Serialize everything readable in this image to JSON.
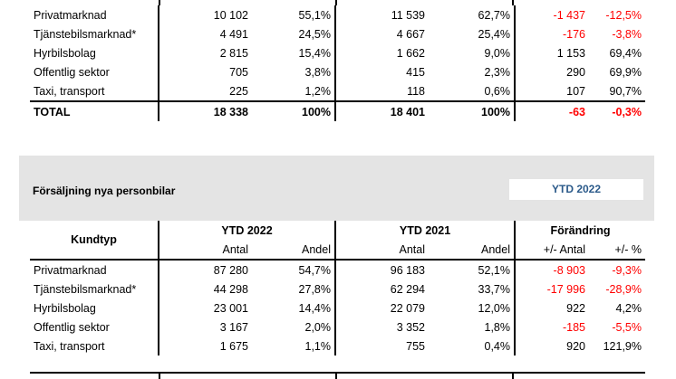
{
  "table1": {
    "rows": [
      {
        "label": "Privatmarknad",
        "a22": "10 102",
        "s22": "55,1%",
        "a21": "11 539",
        "s21": "62,7%",
        "da": "-1 437",
        "dp": "-12,5%",
        "neg_a": true,
        "neg_p": true
      },
      {
        "label": "Tjänstebilsmarknad*",
        "a22": "4 491",
        "s22": "24,5%",
        "a21": "4 667",
        "s21": "25,4%",
        "da": "-176",
        "dp": "-3,8%",
        "neg_a": true,
        "neg_p": true
      },
      {
        "label": "Hyrbilsbolag",
        "a22": "2 815",
        "s22": "15,4%",
        "a21": "1 662",
        "s21": "9,0%",
        "da": "1 153",
        "dp": "69,4%",
        "neg_a": false,
        "neg_p": false
      },
      {
        "label": "Offentlig sektor",
        "a22": "705",
        "s22": "3,8%",
        "a21": "415",
        "s21": "2,3%",
        "da": "290",
        "dp": "69,9%",
        "neg_a": false,
        "neg_p": false
      },
      {
        "label": "Taxi, transport",
        "a22": "225",
        "s22": "1,2%",
        "a21": "118",
        "s21": "0,6%",
        "da": "107",
        "dp": "90,7%",
        "neg_a": false,
        "neg_p": false
      }
    ],
    "total": {
      "label": "TOTAL",
      "a22": "18 338",
      "s22": "100%",
      "a21": "18 401",
      "s21": "100%",
      "da": "-63",
      "dp": "-0,3%"
    }
  },
  "section2": {
    "title": "Försäljning nya personbilar",
    "badge": "YTD 2022"
  },
  "table2": {
    "header": {
      "kundtyp": "Kundtyp",
      "ytd2022": "YTD 2022",
      "ytd2021": "YTD 2021",
      "forandring": "Förändring",
      "antal": "Antal",
      "andel": "Andel",
      "d_antal": "+/- Antal",
      "d_pct": "+/- %"
    },
    "rows": [
      {
        "label": "Privatmarknad",
        "a22": "87 280",
        "s22": "54,7%",
        "a21": "96 183",
        "s21": "52,1%",
        "da": "-8 903",
        "dp": "-9,3%",
        "neg_a": true,
        "neg_p": true
      },
      {
        "label": "Tjänstebilsmarknad*",
        "a22": "44 298",
        "s22": "27,8%",
        "a21": "62 294",
        "s21": "33,7%",
        "da": "-17 996",
        "dp": "-28,9%",
        "neg_a": true,
        "neg_p": true
      },
      {
        "label": "Hyrbilsbolag",
        "a22": "23 001",
        "s22": "14,4%",
        "a21": "22 079",
        "s21": "12,0%",
        "da": "922",
        "dp": "4,2%",
        "neg_a": false,
        "neg_p": false
      },
      {
        "label": "Offentlig sektor",
        "a22": "3 167",
        "s22": "2,0%",
        "a21": "3 352",
        "s21": "1,8%",
        "da": "-185",
        "dp": "-5,5%",
        "neg_a": true,
        "neg_p": true
      },
      {
        "label": "Taxi, transport",
        "a22": "1 675",
        "s22": "1,1%",
        "a21": "755",
        "s21": "0,4%",
        "da": "920",
        "dp": "121,9%",
        "neg_a": false,
        "neg_p": false
      }
    ]
  }
}
